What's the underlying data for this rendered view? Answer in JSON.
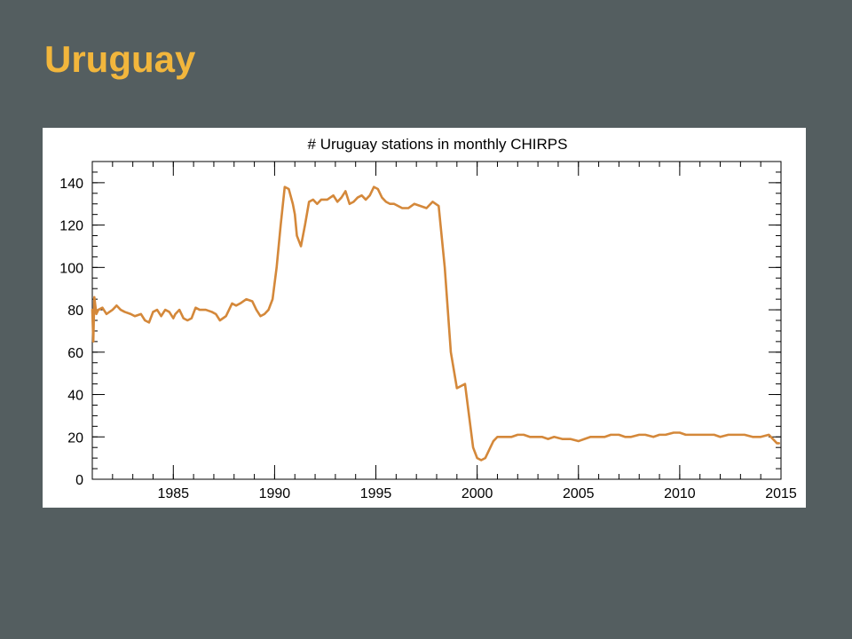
{
  "slide": {
    "title": "Uruguay"
  },
  "chart_data": {
    "type": "line",
    "title": "# Uruguay stations in monthly CHIRPS",
    "xlabel": "",
    "ylabel": "",
    "xlim": [
      1981,
      2015
    ],
    "ylim": [
      0,
      150
    ],
    "x_ticks": [
      1985,
      1990,
      1995,
      2000,
      2005,
      2010,
      2015
    ],
    "y_ticks": [
      0,
      20,
      40,
      60,
      80,
      100,
      120,
      140
    ],
    "grid": false,
    "line_color": "#d4883a",
    "series": [
      {
        "x": [
          1981.0,
          1981.05,
          1981.1,
          1981.2,
          1981.3,
          1981.5,
          1981.7,
          1982.0,
          1982.2,
          1982.4,
          1982.6,
          1982.9,
          1983.1,
          1983.4,
          1983.6,
          1983.8,
          1984.0,
          1984.2,
          1984.4,
          1984.6,
          1984.8,
          1985.0,
          1985.1,
          1985.3,
          1985.5,
          1985.7,
          1985.9,
          1986.1,
          1986.3,
          1986.6,
          1986.9,
          1987.1,
          1987.3,
          1987.6,
          1987.9,
          1988.1,
          1988.3,
          1988.6,
          1988.9,
          1989.1,
          1989.3,
          1989.5,
          1989.7,
          1989.9,
          1990.1,
          1990.3,
          1990.5,
          1990.7,
          1990.9,
          1991.0,
          1991.1,
          1991.3,
          1991.5,
          1991.7,
          1991.9,
          1992.1,
          1992.3,
          1992.6,
          1992.9,
          1993.1,
          1993.3,
          1993.5,
          1993.7,
          1993.9,
          1994.1,
          1994.3,
          1994.5,
          1994.7,
          1994.9,
          1995.1,
          1995.3,
          1995.5,
          1995.7,
          1995.9,
          1996.1,
          1996.3,
          1996.6,
          1996.9,
          1997.2,
          1997.5,
          1997.8,
          1998.1,
          1998.4,
          1998.7,
          1999.0,
          1999.2,
          1999.4,
          1999.6,
          1999.8,
          2000.0,
          2000.2,
          2000.4,
          2000.6,
          2000.8,
          2001.0,
          2001.2,
          2001.4,
          2001.7,
          2002.0,
          2002.3,
          2002.6,
          2002.9,
          2003.2,
          2003.5,
          2003.8,
          2004.2,
          2004.6,
          2005.0,
          2005.3,
          2005.6,
          2005.9,
          2006.3,
          2006.6,
          2007.0,
          2007.3,
          2007.6,
          2008.0,
          2008.3,
          2008.7,
          2009.0,
          2009.3,
          2009.7,
          2010.0,
          2010.3,
          2010.6,
          2011.0,
          2011.3,
          2011.7,
          2012.0,
          2012.4,
          2012.8,
          2013.2,
          2013.6,
          2014.0,
          2014.4,
          2014.8,
          2014.9
        ],
        "values": [
          80,
          65,
          86,
          78,
          80,
          81,
          78,
          80,
          82,
          80,
          79,
          78,
          77,
          78,
          75,
          74,
          79,
          80,
          77,
          80,
          79,
          76,
          78,
          80,
          76,
          75,
          76,
          81,
          80,
          80,
          79,
          78,
          75,
          77,
          83,
          82,
          83,
          85,
          84,
          80,
          77,
          78,
          80,
          85,
          100,
          120,
          138,
          137,
          130,
          125,
          115,
          110,
          120,
          131,
          132,
          130,
          132,
          132,
          134,
          131,
          133,
          136,
          130,
          131,
          133,
          134,
          132,
          134,
          138,
          137,
          133,
          131,
          130,
          130,
          129,
          128,
          128,
          130,
          129,
          128,
          131,
          129,
          100,
          60,
          43,
          44,
          45,
          30,
          15,
          10,
          9,
          10,
          14,
          18,
          20,
          20,
          20,
          20,
          21,
          21,
          20,
          20,
          20,
          19,
          20,
          19,
          19,
          18,
          19,
          20,
          20,
          20,
          21,
          21,
          20,
          20,
          21,
          21,
          20,
          21,
          21,
          22,
          22,
          21,
          21,
          21,
          21,
          21,
          20,
          21,
          21,
          21,
          20,
          20,
          21,
          17,
          17
        ]
      }
    ]
  }
}
